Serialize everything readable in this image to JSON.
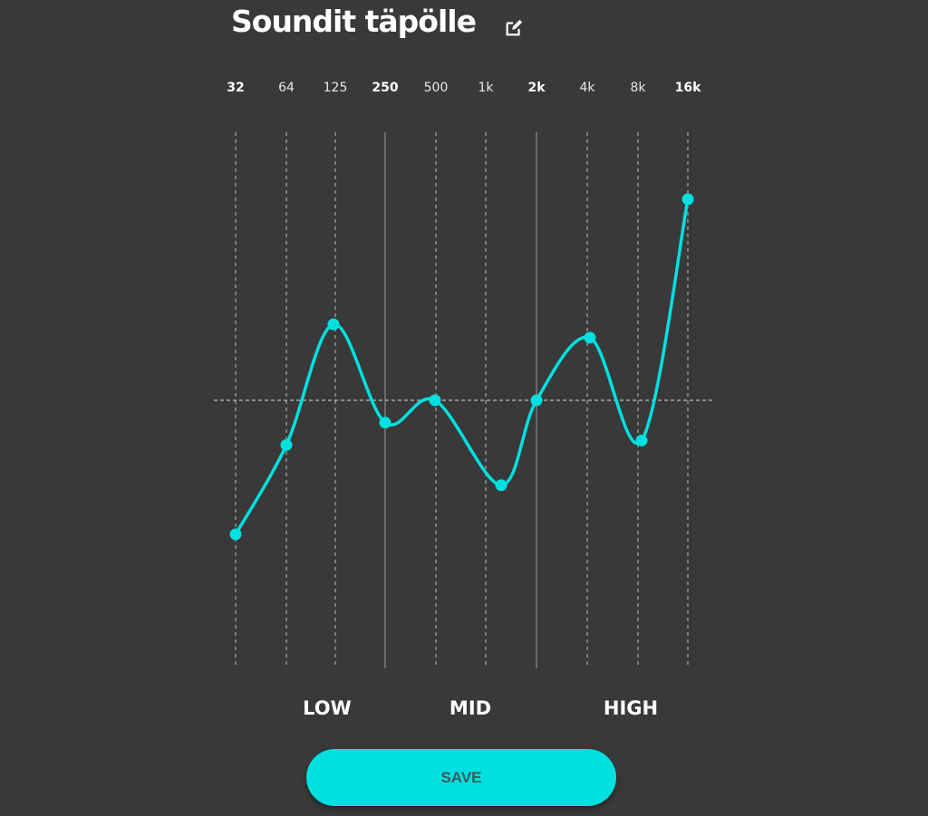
{
  "header": {
    "title": "Soundit täpölle",
    "edit_icon": "pencil-square-icon"
  },
  "bands": [
    {
      "label": "32",
      "bold": true,
      "gain": -6.0
    },
    {
      "label": "64",
      "bold": false,
      "gain": -2.0
    },
    {
      "label": "125",
      "bold": false,
      "gain": 3.4
    },
    {
      "label": "250",
      "bold": true,
      "gain": -1.0
    },
    {
      "label": "500",
      "bold": false,
      "gain": 0.0
    },
    {
      "label": "1k",
      "bold": false,
      "gain": -3.8
    },
    {
      "label": "2k",
      "bold": true,
      "gain": 0.0
    },
    {
      "label": "4k",
      "bold": false,
      "gain": 2.8
    },
    {
      "label": "8k",
      "bold": false,
      "gain": -1.8
    },
    {
      "label": "16k",
      "bold": true,
      "gain": 9.0
    }
  ],
  "gain_range": [
    -12,
    12
  ],
  "sections": {
    "low": "LOW",
    "mid": "MID",
    "high": "HIGH"
  },
  "save_label": "SAVE",
  "colors": {
    "background": "#393939",
    "accent": "#00e0e0"
  }
}
